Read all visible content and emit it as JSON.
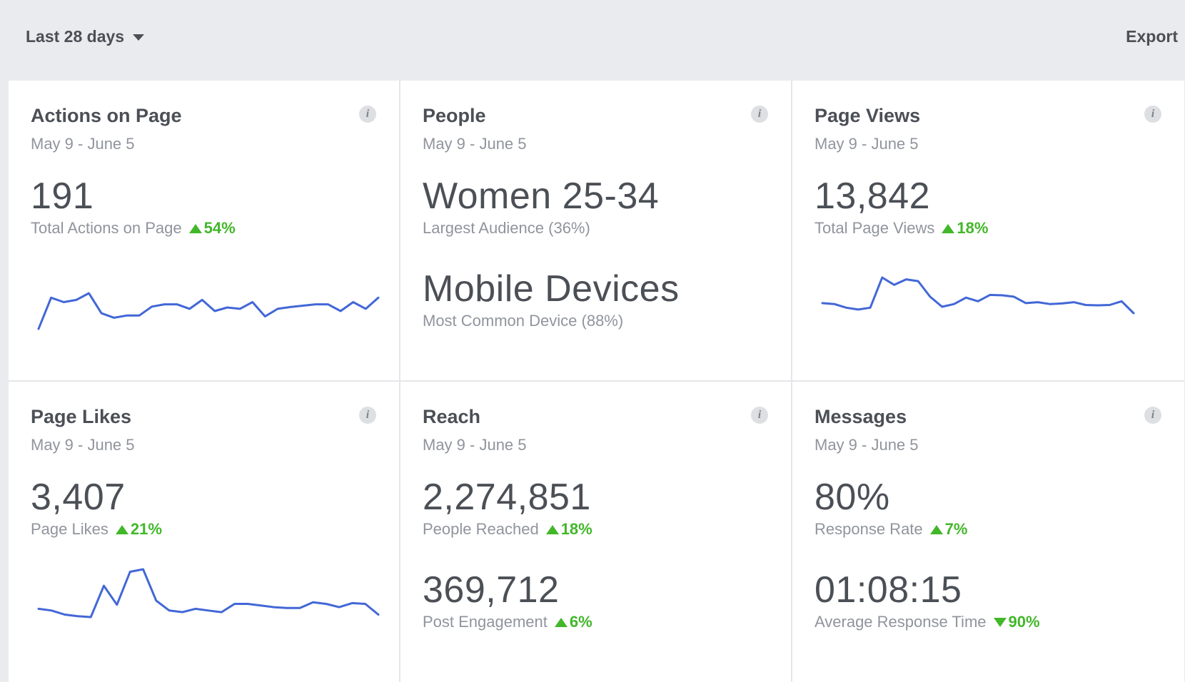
{
  "header": {
    "range_label": "Last 28 days",
    "export_label": "Export"
  },
  "colors": {
    "accent_line": "#4267d6",
    "positive": "#42b72a",
    "text_dark": "#4b4f56",
    "text_muted": "#90949c"
  },
  "info_glyph": "i",
  "cards": {
    "actions": {
      "title": "Actions on Page",
      "date": "May 9 - June 5",
      "value": "191",
      "label": "Total Actions on Page",
      "delta": "54%",
      "delta_dir": "up",
      "chart_data": {
        "type": "line",
        "values": [
          4,
          11,
          10,
          10.5,
          12,
          7.5,
          6.5,
          7,
          7,
          9,
          9.5,
          9.5,
          8.5,
          10.5,
          8,
          8.8,
          8.5,
          10,
          6.8,
          8.5,
          8.9,
          9.2,
          9.5,
          9.5,
          8,
          10,
          8.5,
          11
        ]
      }
    },
    "people": {
      "title": "People",
      "date": "May 9 - June 5",
      "value1": "Women 25-34",
      "label1": "Largest Audience (36%)",
      "value2": "Mobile Devices",
      "label2": "Most Common Device (88%)"
    },
    "pageviews": {
      "title": "Page Views",
      "date": "May 9 - June 5",
      "value": "13,842",
      "label": "Total Page Views",
      "delta": "18%",
      "delta_dir": "up",
      "chart_data": {
        "type": "line",
        "values": [
          350,
          345,
          325,
          315,
          325,
          490,
          450,
          480,
          470,
          385,
          330,
          345,
          380,
          360,
          395,
          393,
          385,
          350,
          355,
          345,
          348,
          355,
          340,
          338,
          340,
          360,
          295
        ]
      }
    },
    "likes": {
      "title": "Page Likes",
      "date": "May 9 - June 5",
      "value": "3,407",
      "label": "Page Likes",
      "delta": "21%",
      "delta_dir": "up",
      "chart_data": {
        "type": "line",
        "values": [
          120,
          118,
          113,
          111,
          110,
          148,
          125,
          165,
          168,
          130,
          118,
          116,
          120,
          118,
          116,
          126,
          126,
          124,
          122,
          121,
          121,
          128,
          126,
          122,
          127,
          126,
          113
        ]
      }
    },
    "reach": {
      "title": "Reach",
      "date": "May 9 - June 5",
      "value1": "2,274,851",
      "label1": "People Reached",
      "delta1": "18%",
      "delta1_dir": "up",
      "value2": "369,712",
      "label2": "Post Engagement",
      "delta2": "6%",
      "delta2_dir": "up"
    },
    "messages": {
      "title": "Messages",
      "date": "May 9 - June 5",
      "value1": "80%",
      "label1": "Response Rate",
      "delta1": "7%",
      "delta1_dir": "up",
      "value2": "01:08:15",
      "label2": "Average Response Time",
      "delta2": "90%",
      "delta2_dir": "down"
    }
  }
}
